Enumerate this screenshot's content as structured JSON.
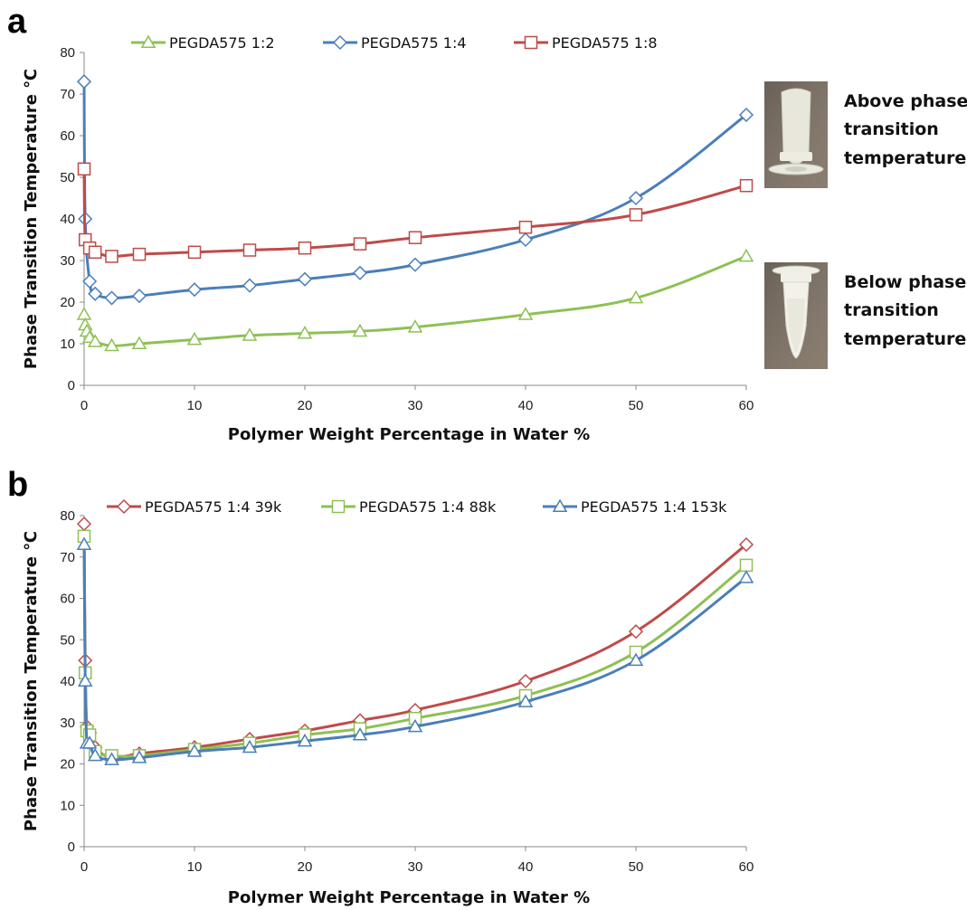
{
  "chart_data": [
    {
      "type": "line",
      "panel": "a",
      "xlabel": "Polymer Weight Percentage in Water %",
      "ylabel": "Phase Transition Temperature ℃",
      "xlim": [
        0,
        60
      ],
      "ylim": [
        0,
        80
      ],
      "xticks": [
        0,
        10,
        20,
        30,
        40,
        50,
        60
      ],
      "yticks": [
        0,
        10,
        20,
        30,
        40,
        50,
        60,
        70,
        80
      ],
      "grid": false,
      "legend_position": "top",
      "series": [
        {
          "name": "PEGDA575 1:2",
          "color": "#8dc153",
          "marker": "triangle",
          "x": [
            0,
            0.1,
            0.25,
            0.5,
            1,
            2.5,
            5,
            10,
            15,
            20,
            25,
            30,
            40,
            50,
            60
          ],
          "y": [
            17,
            14.5,
            13,
            11.5,
            10.5,
            9.5,
            10,
            11,
            12,
            12.5,
            13,
            14,
            17,
            21,
            31
          ]
        },
        {
          "name": "PEGDA575 1:4",
          "color": "#4a7ebb",
          "marker": "diamond",
          "x": [
            0,
            0.1,
            0.5,
            1,
            2.5,
            5,
            10,
            15,
            20,
            25,
            30,
            40,
            50,
            60
          ],
          "y": [
            73,
            40,
            25,
            22,
            21,
            21.5,
            23,
            24,
            25.5,
            27,
            29,
            35,
            45,
            65
          ]
        },
        {
          "name": "PEGDA575 1:8",
          "color": "#be4b48",
          "marker": "square",
          "x": [
            0,
            0.1,
            0.5,
            1,
            2.5,
            5,
            10,
            15,
            20,
            25,
            30,
            40,
            50,
            60
          ],
          "y": [
            52,
            35,
            33,
            32,
            31,
            31.5,
            32,
            32.5,
            33,
            34,
            35.5,
            38,
            41,
            48
          ]
        }
      ],
      "annotations": [
        {
          "line1": "Above phase",
          "line2": "transition",
          "line3": "temperature"
        },
        {
          "line1": "Below phase",
          "line2": "transition",
          "line3": "temperature"
        }
      ]
    },
    {
      "type": "line",
      "panel": "b",
      "xlabel": "Polymer Weight Percentage in Water %",
      "ylabel": "Phase Transition Temperature ℃",
      "xlim": [
        0,
        60
      ],
      "ylim": [
        0,
        80
      ],
      "xticks": [
        0,
        10,
        20,
        30,
        40,
        50,
        60
      ],
      "yticks": [
        0,
        10,
        20,
        30,
        40,
        50,
        60,
        70,
        80
      ],
      "grid": false,
      "legend_position": "top",
      "series": [
        {
          "name": "PEGDA575 1:4 39k",
          "color": "#be4b48",
          "marker": "diamond",
          "x": [
            0,
            0.1,
            0.25,
            0.5,
            1,
            2.5,
            5,
            10,
            15,
            20,
            25,
            30,
            40,
            50,
            60
          ],
          "y": [
            78,
            45,
            29,
            27.5,
            24,
            21.5,
            22.5,
            24,
            26,
            28,
            30.5,
            33,
            40,
            52,
            73
          ]
        },
        {
          "name": "PEGDA575 1:4 88k",
          "color": "#8dc153",
          "marker": "square",
          "x": [
            0,
            0.1,
            0.25,
            0.5,
            1,
            2.5,
            5,
            10,
            15,
            20,
            25,
            30,
            40,
            50,
            60
          ],
          "y": [
            75,
            42,
            28,
            27,
            23,
            22,
            22,
            23.5,
            25,
            27,
            28.5,
            31,
            36.5,
            47,
            68
          ]
        },
        {
          "name": "PEGDA575 1:4 153k",
          "color": "#4a7ebb",
          "marker": "triangle",
          "x": [
            0,
            0.1,
            0.25,
            0.5,
            1,
            2.5,
            5,
            10,
            15,
            20,
            25,
            30,
            40,
            50,
            60
          ],
          "y": [
            73,
            40,
            25,
            25,
            22,
            21,
            21.5,
            23,
            24,
            25.5,
            27,
            29,
            35,
            45,
            65
          ]
        }
      ]
    }
  ]
}
